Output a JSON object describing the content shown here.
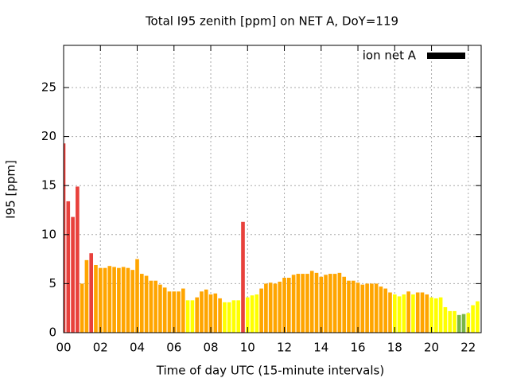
{
  "chart_data": {
    "type": "bar",
    "title": "Total I95 zenith [ppm] on NET A, DoY=119",
    "x_label": "Time of day UTC (15-minute intervals)",
    "y_label": "I95 [ppm]",
    "x": [
      0,
      0.25,
      0.5,
      0.75,
      1,
      1.25,
      1.5,
      1.75,
      2,
      2.25,
      2.5,
      2.75,
      3,
      3.25,
      3.5,
      3.75,
      4,
      4.25,
      4.5,
      4.75,
      5,
      5.25,
      5.5,
      5.75,
      6,
      6.25,
      6.5,
      6.75,
      7,
      7.25,
      7.5,
      7.75,
      8,
      8.25,
      8.5,
      8.75,
      9,
      9.25,
      9.5,
      9.75,
      10,
      10.25,
      10.5,
      10.75,
      11,
      11.25,
      11.5,
      11.75,
      12,
      12.25,
      12.5,
      12.75,
      13,
      13.25,
      13.5,
      13.75,
      14,
      14.25,
      14.5,
      14.75,
      15,
      15.25,
      15.5,
      15.75,
      16,
      16.25,
      16.5,
      16.75,
      17,
      17.25,
      17.5,
      17.75,
      18,
      18.25,
      18.5,
      18.75,
      19,
      19.25,
      19.5,
      19.75,
      20,
      20.25,
      20.5,
      20.75,
      21,
      21.25,
      21.5,
      21.75,
      22,
      22.25,
      22.5
    ],
    "series": [
      {
        "name": "ion net A",
        "color": "#000000",
        "values": [
          19.3,
          13.4,
          11.8,
          14.9,
          5.0,
          7.4,
          8.1,
          6.9,
          6.6,
          6.6,
          6.8,
          6.7,
          6.6,
          6.7,
          6.6,
          6.4,
          7.5,
          6.0,
          5.8,
          5.3,
          5.3,
          4.9,
          4.6,
          4.2,
          4.2,
          4.2,
          4.5,
          3.3,
          3.3,
          3.6,
          4.2,
          4.4,
          3.9,
          4.0,
          3.5,
          3.1,
          3.1,
          3.3,
          3.3,
          11.3,
          3.6,
          3.8,
          3.9,
          4.5,
          5.0,
          5.1,
          5.0,
          5.2,
          5.6,
          5.6,
          5.9,
          6.0,
          6.0,
          6.0,
          6.3,
          6.1,
          5.7,
          5.9,
          6.0,
          6.0,
          6.1,
          5.7,
          5.3,
          5.3,
          5.1,
          4.9,
          5.0,
          5.0,
          5.0,
          4.7,
          4.5,
          4.1,
          3.9,
          3.7,
          3.9,
          4.2,
          3.9,
          4.1,
          4.1,
          3.9,
          3.6,
          3.5,
          3.6,
          2.6,
          2.2,
          2.2,
          1.8,
          1.9,
          2.0,
          2.8,
          3.2
        ],
        "bar_colors": [
          "#e8413c",
          "#e8413c",
          "#e8413c",
          "#e8413c",
          "#ffa500",
          "#ffa500",
          "#e8413c",
          "#ffa500",
          "#ffa500",
          "#ffa500",
          "#ffa500",
          "#ffa500",
          "#ffa500",
          "#ffa500",
          "#ffa500",
          "#ffa500",
          "#ffa500",
          "#ffa500",
          "#ffa500",
          "#ffa500",
          "#ffa500",
          "#ffa500",
          "#ffa500",
          "#ffa500",
          "#ffa500",
          "#ffa500",
          "#ffa500",
          "#ffff00",
          "#ffff00",
          "#ffa500",
          "#ffa500",
          "#ffa500",
          "#ffa500",
          "#ffa500",
          "#ffa500",
          "#ffff00",
          "#ffff00",
          "#ffff00",
          "#ffff00",
          "#e8413c",
          "#ffff00",
          "#ffff00",
          "#ffff00",
          "#ffa500",
          "#ffa500",
          "#ffa500",
          "#ffa500",
          "#ffa500",
          "#ffa500",
          "#ffa500",
          "#ffa500",
          "#ffa500",
          "#ffa500",
          "#ffa500",
          "#ffa500",
          "#ffa500",
          "#ffa500",
          "#ffa500",
          "#ffa500",
          "#ffa500",
          "#ffa500",
          "#ffa500",
          "#ffa500",
          "#ffa500",
          "#ffa500",
          "#ffa500",
          "#ffa500",
          "#ffa500",
          "#ffa500",
          "#ffa500",
          "#ffa500",
          "#ffa500",
          "#ffff00",
          "#ffff00",
          "#ffff00",
          "#ffa500",
          "#ffff00",
          "#ffa500",
          "#ffa500",
          "#ffa500",
          "#ffff00",
          "#ffff00",
          "#ffff00",
          "#ffff00",
          "#ffff00",
          "#ffff00",
          "#7ab648",
          "#7ab648",
          "#ffff00",
          "#ffff00",
          "#ffff00"
        ]
      }
    ],
    "bar_width": 0.2,
    "xlim": [
      0,
      22.7
    ],
    "ylim": [
      0,
      29.3
    ],
    "xticks": [
      {
        "value": 0,
        "label": "00"
      },
      {
        "value": 2,
        "label": "02"
      },
      {
        "value": 4,
        "label": "04"
      },
      {
        "value": 6,
        "label": "06"
      },
      {
        "value": 8,
        "label": "08"
      },
      {
        "value": 10,
        "label": "10"
      },
      {
        "value": 12,
        "label": "12"
      },
      {
        "value": 14,
        "label": "14"
      },
      {
        "value": 16,
        "label": "16"
      },
      {
        "value": 18,
        "label": "18"
      },
      {
        "value": 20,
        "label": "20"
      },
      {
        "value": 22,
        "label": "22"
      }
    ],
    "yticks": [
      0,
      5,
      10,
      15,
      20,
      25
    ],
    "grid": true,
    "legend": "upper right"
  }
}
